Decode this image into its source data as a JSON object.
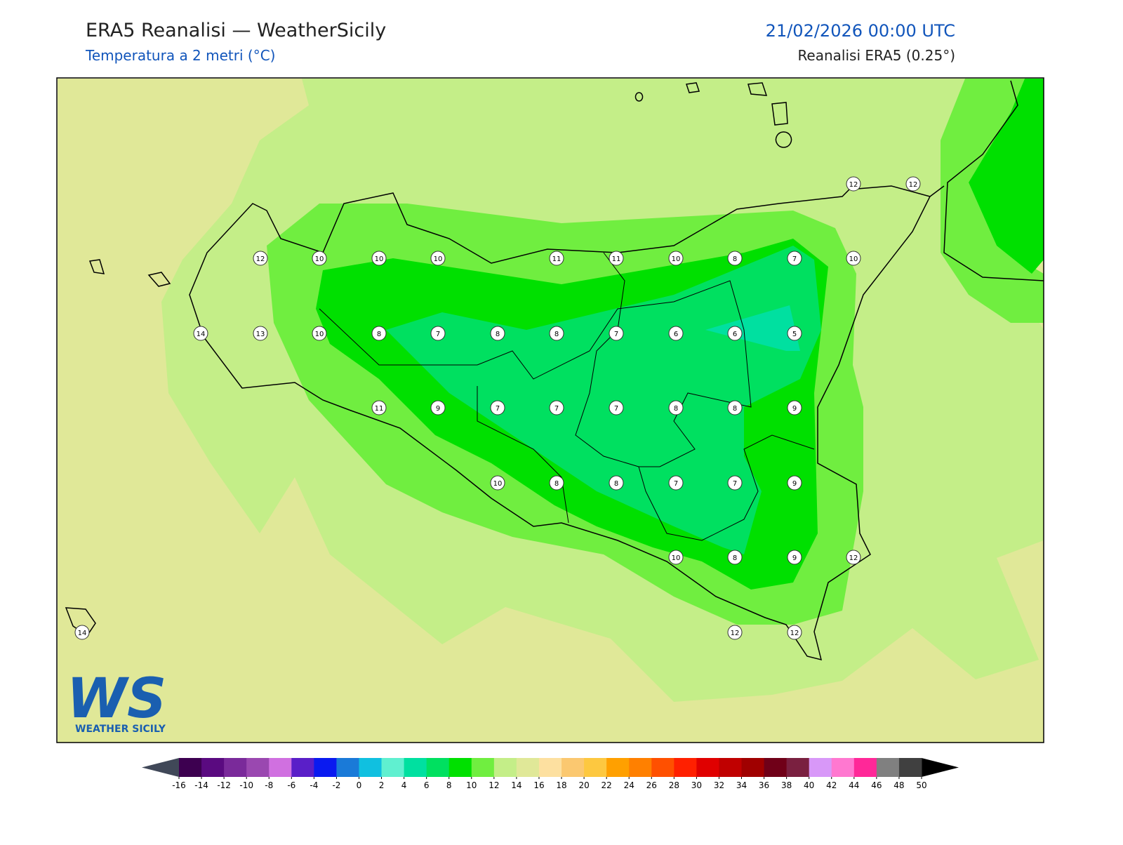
{
  "header": {
    "title": "ERA5 Reanalisi — WeatherSicily",
    "subtitle": "Temperatura a 2 metri (°C)",
    "datetime": "21/02/2026 00:00 UTC",
    "source": "Reanalisi ERA5 (0.25°)"
  },
  "station_values": [
    12,
    12,
    12,
    10,
    10,
    10,
    11,
    11,
    10,
    8,
    7,
    10,
    14,
    13,
    10,
    8,
    7,
    8,
    8,
    7,
    6,
    6,
    5,
    11,
    9,
    7,
    7,
    7,
    8,
    8,
    9,
    10,
    8,
    8,
    7,
    7,
    9,
    10,
    8,
    9,
    12,
    14,
    12,
    12
  ],
  "colorbar": {
    "ticks": [
      -16,
      -14,
      -12,
      -10,
      -8,
      -6,
      -4,
      -2,
      0,
      2,
      4,
      6,
      8,
      10,
      12,
      14,
      16,
      18,
      20,
      22,
      24,
      26,
      28,
      30,
      32,
      34,
      36,
      38,
      40,
      42,
      44,
      46,
      48,
      50
    ],
    "colors": [
      "#3d0050",
      "#5a0a80",
      "#7a2a9a",
      "#9a48b0",
      "#d070e0",
      "#5a1fc8",
      "#0a1af0",
      "#1a7ad8",
      "#10c0e0",
      "#60f0d0",
      "#00e0a0",
      "#00e060",
      "#00e000",
      "#70ee40",
      "#c4ee88",
      "#e0e898",
      "#fde0a0",
      "#fbc870",
      "#fdc840",
      "#ffa000",
      "#ff8000",
      "#ff5000",
      "#ff2000",
      "#e00000",
      "#c00000",
      "#a00000",
      "#700018",
      "#7a2040",
      "#d898f8",
      "#ff78d0",
      "#ff2898",
      "#808080",
      "#404040"
    ]
  },
  "logo": {
    "mark": "WS",
    "text": "WEATHER SICILY"
  }
}
